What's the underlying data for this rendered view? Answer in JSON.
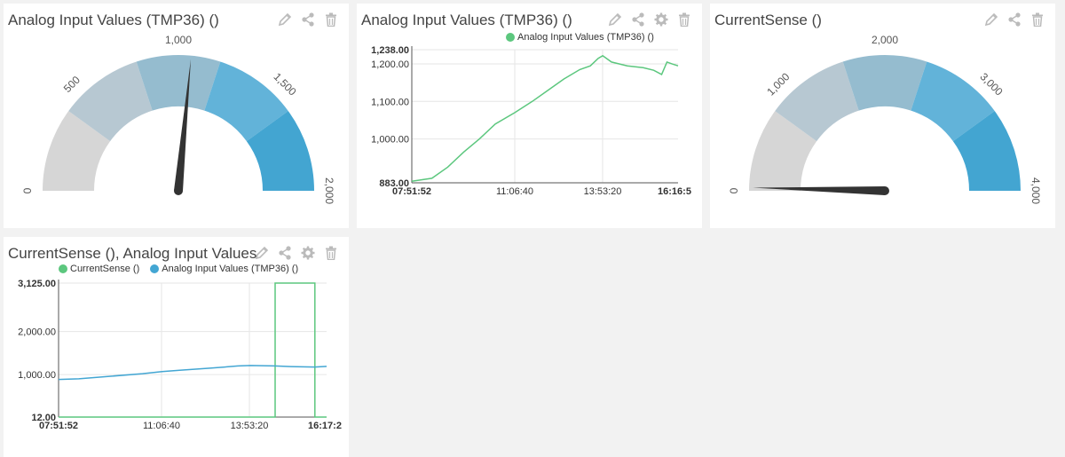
{
  "icons": [
    "pencil-icon",
    "share-icon",
    "gear-icon",
    "trash-icon"
  ],
  "colors": {
    "green": "#5cc77e",
    "blue": "#43a6d3",
    "needle": "#333333",
    "gauge_bands": [
      "#d6d6d6",
      "#b7c8d2",
      "#95bccf",
      "#62b3d9",
      "#43a5d1"
    ]
  },
  "widgets": [
    {
      "title": "Analog Input Values (TMP36) ()",
      "type": "gauge",
      "tick_labels": [
        "0",
        "500",
        "1,000",
        "1,500",
        "2,000"
      ]
    },
    {
      "title": "Analog Input Values (TMP36) ()",
      "type": "line-chart",
      "legend": [
        "Analog Input Values (TMP36) ()"
      ],
      "y_ticks": [
        "1,238.00",
        "1,200.00",
        "1,100.00",
        "1,000.00",
        "883.00"
      ],
      "x_ticks": [
        "07:51:52",
        "11:06:40",
        "13:53:20",
        "16:16:5"
      ]
    },
    {
      "title": "CurrentSense ()",
      "type": "gauge",
      "tick_labels": [
        "0",
        "1,000",
        "2,000",
        "3,000",
        "4,000"
      ]
    },
    {
      "title": "CurrentSense (), Analog Input Values",
      "type": "line-chart",
      "legend": [
        "CurrentSense ()",
        "Analog Input Values (TMP36) ()"
      ],
      "y_ticks": [
        "3,125.00",
        "2,000.00",
        "1,000.00",
        "12.00"
      ],
      "x_ticks": [
        "07:51:52",
        "11:06:40",
        "13:53:20",
        "16:17:2"
      ]
    }
  ],
  "chart_data": [
    {
      "type": "gauge",
      "min": 0,
      "max": 2000,
      "value": 1060,
      "ticks": [
        0,
        500,
        1000,
        1500,
        2000
      ]
    },
    {
      "type": "line",
      "x_range": [
        "07:51:52",
        "16:16:5"
      ],
      "ylim": [
        883,
        1238
      ],
      "series": [
        {
          "name": "Analog Input Values (TMP36) ()",
          "color": "#5cc77e",
          "x": [
            "07:51:52",
            "08:30",
            "09:00",
            "09:30",
            "10:00",
            "10:30",
            "11:06:40",
            "11:40",
            "12:10",
            "12:40",
            "13:10",
            "13:30",
            "13:45",
            "13:53:20",
            "14:10",
            "14:40",
            "15:10",
            "15:30",
            "15:45",
            "15:55",
            "16:05",
            "16:16:5"
          ],
          "values": [
            887,
            895,
            925,
            965,
            1000,
            1040,
            1070,
            1100,
            1130,
            1160,
            1185,
            1195,
            1215,
            1222,
            1205,
            1195,
            1190,
            1183,
            1172,
            1205,
            1200,
            1195
          ]
        }
      ]
    },
    {
      "type": "gauge",
      "min": 0,
      "max": 4000,
      "value": 30,
      "ticks": [
        0,
        1000,
        2000,
        3000,
        4000
      ]
    },
    {
      "type": "line",
      "x_range": [
        "07:51:52",
        "16:17:2"
      ],
      "ylim": [
        12,
        3125
      ],
      "series": [
        {
          "name": "CurrentSense ()",
          "color": "#5cc77e",
          "x": [
            "07:51:52",
            "11:06:40",
            "13:53:20",
            "14:40",
            "14:40",
            "15:55",
            "15:55",
            "16:17:2"
          ],
          "values": [
            12,
            12,
            12,
            12,
            3125,
            3125,
            12,
            12
          ]
        },
        {
          "name": "Analog Input Values (TMP36) ()",
          "color": "#43a6d3",
          "x": [
            "07:51:52",
            "08:30",
            "09:30",
            "10:30",
            "11:06:40",
            "11:40",
            "12:40",
            "13:30",
            "13:53:20",
            "14:40",
            "15:10",
            "15:55",
            "16:17:2"
          ],
          "values": [
            887,
            900,
            960,
            1020,
            1070,
            1100,
            1150,
            1200,
            1210,
            1200,
            1185,
            1175,
            1190
          ]
        }
      ]
    }
  ]
}
